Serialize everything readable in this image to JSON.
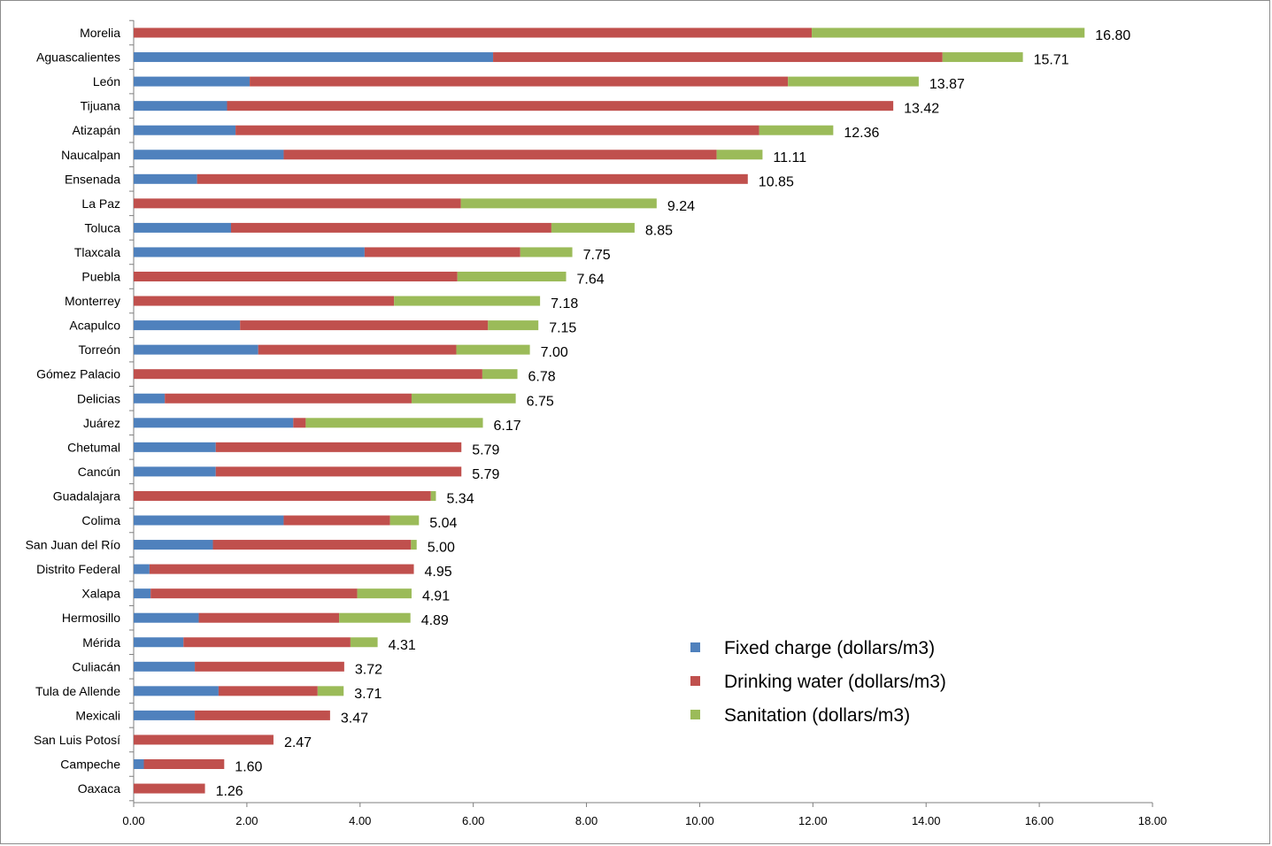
{
  "chart_data": {
    "type": "bar",
    "orientation": "horizontal",
    "stacked": true,
    "title": "",
    "xlabel": "",
    "ylabel": "",
    "xlim": [
      0,
      18
    ],
    "x_ticks": [
      "0.00",
      "2.00",
      "4.00",
      "6.00",
      "8.00",
      "10.00",
      "12.00",
      "14.00",
      "16.00",
      "18.00"
    ],
    "grid": false,
    "legend_position": "bottom-right",
    "categories": [
      "Morelia",
      "Aguascalientes",
      "León",
      "Tijuana",
      "Atizapán",
      "Naucalpan",
      "Ensenada",
      "La Paz",
      "Toluca",
      "Tlaxcala",
      "Puebla",
      "Monterrey",
      "Acapulco",
      "Torreón",
      "Gómez Palacio",
      "Delicias",
      "Juárez",
      "Chetumal",
      "Cancún",
      "Guadalajara",
      "Colima",
      "San Juan del Río",
      "Distrito Federal",
      "Xalapa",
      "Hermosillo",
      "Mérida",
      "Culiacán",
      "Tula de Allende",
      "Mexicali",
      "San Luis Potosí",
      "Campeche",
      "Oaxaca"
    ],
    "series": [
      {
        "name": "Fixed charge (dollars/m3)",
        "color": "#4F81BD",
        "values": [
          0,
          6.35,
          2.05,
          1.65,
          1.8,
          2.65,
          1.12,
          0,
          1.72,
          4.08,
          0,
          0,
          1.88,
          2.2,
          0,
          0.55,
          2.82,
          1.45,
          1.45,
          0,
          2.65,
          1.4,
          0.28,
          0.3,
          1.15,
          0.88,
          1.08,
          1.5,
          1.08,
          0,
          0.18,
          0
        ]
      },
      {
        "name": "Drinking water (dollars/m3)",
        "color": "#C0504D",
        "values": [
          11.98,
          7.94,
          9.51,
          11.77,
          9.25,
          7.65,
          9.73,
          5.78,
          5.66,
          2.75,
          5.72,
          4.6,
          4.38,
          3.5,
          6.16,
          4.36,
          0.22,
          4.34,
          4.34,
          5.25,
          1.88,
          3.5,
          4.67,
          3.65,
          2.48,
          2.95,
          2.64,
          1.75,
          2.39,
          2.47,
          1.42,
          1.26
        ]
      },
      {
        "name": "Sanitation (dollars/m3)",
        "color": "#9BBB59",
        "values": [
          4.82,
          1.42,
          2.31,
          0,
          1.31,
          0.81,
          0,
          3.46,
          1.47,
          0.92,
          1.92,
          2.58,
          0.89,
          1.3,
          0.62,
          1.84,
          3.13,
          0,
          0,
          0.09,
          0.51,
          0.1,
          0,
          0.96,
          1.26,
          0.48,
          0,
          0.46,
          0,
          0,
          0,
          0
        ]
      }
    ],
    "totals": [
      "16.80",
      "15.71",
      "13.87",
      "13.42",
      "12.36",
      "11.11",
      "10.85",
      "9.24",
      "8.85",
      "7.75",
      "7.64",
      "7.18",
      "7.15",
      "7.00",
      "6.78",
      "6.75",
      "6.17",
      "5.79",
      "5.79",
      "5.34",
      "5.04",
      "5.00",
      "4.95",
      "4.91",
      "4.89",
      "4.31",
      "3.72",
      "3.71",
      "3.47",
      "2.47",
      "1.60",
      "1.26"
    ]
  }
}
